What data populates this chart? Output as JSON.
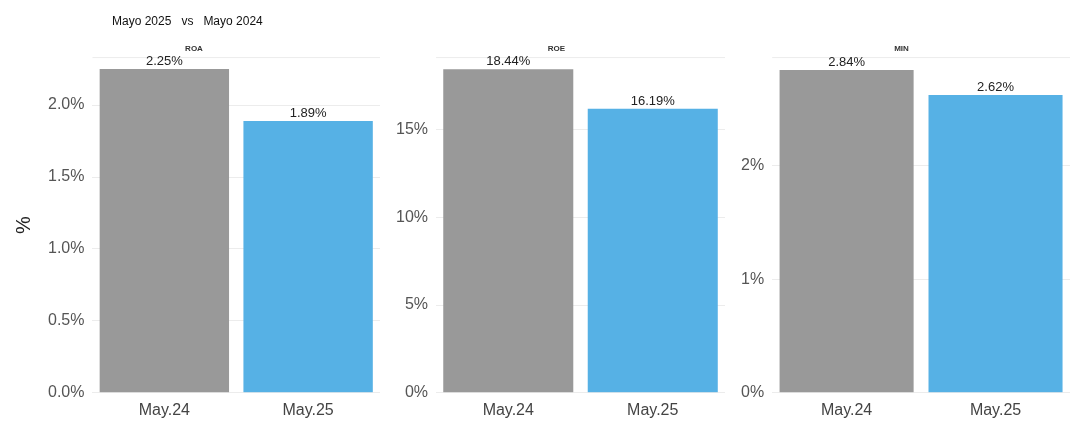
{
  "chart_data": [
    {
      "type": "other",
      "title": "Mayo 2025   vs   Mayo 2024"
    },
    {
      "type": "bar",
      "title": "ROA",
      "ylabel": "%",
      "categories": [
        "May.24",
        "May.25"
      ],
      "values": [
        2.25,
        1.89
      ],
      "colors": [
        "#999999",
        "#56b1e5"
      ],
      "value_labels": [
        "2.25%",
        "1.89%"
      ],
      "ylim": [
        0,
        2.33
      ],
      "yticks": [
        {
          "value": 0,
          "label": "0.0%"
        },
        {
          "value": 0.5,
          "label": "0.5%"
        },
        {
          "value": 1,
          "label": "1.0%"
        },
        {
          "value": 1.5,
          "label": "1.5%"
        },
        {
          "value": 2,
          "label": "2.0%"
        }
      ],
      "grid": "y"
    },
    {
      "type": "bar",
      "title": "ROE",
      "categories": [
        "May.24",
        "May.25"
      ],
      "values": [
        18.44,
        16.19
      ],
      "colors": [
        "#999999",
        "#56b1e5"
      ],
      "value_labels": [
        "18.44%",
        "16.19%"
      ],
      "ylim": [
        0,
        19.1
      ],
      "yticks": [
        {
          "value": 0,
          "label": "0%"
        },
        {
          "value": 5,
          "label": "5%"
        },
        {
          "value": 10,
          "label": "10%"
        },
        {
          "value": 15,
          "label": "15%"
        }
      ],
      "grid": "y"
    },
    {
      "type": "bar",
      "title": "MIN",
      "categories": [
        "May.24",
        "May.25"
      ],
      "values": [
        2.84,
        2.62
      ],
      "colors": [
        "#999999",
        "#56b1e5"
      ],
      "value_labels": [
        "2.84%",
        "2.62%"
      ],
      "ylim": [
        0,
        2.95
      ],
      "yticks": [
        {
          "value": 0,
          "label": "0%"
        },
        {
          "value": 1,
          "label": "1%"
        },
        {
          "value": 2,
          "label": "2%"
        }
      ],
      "grid": "y"
    }
  ]
}
